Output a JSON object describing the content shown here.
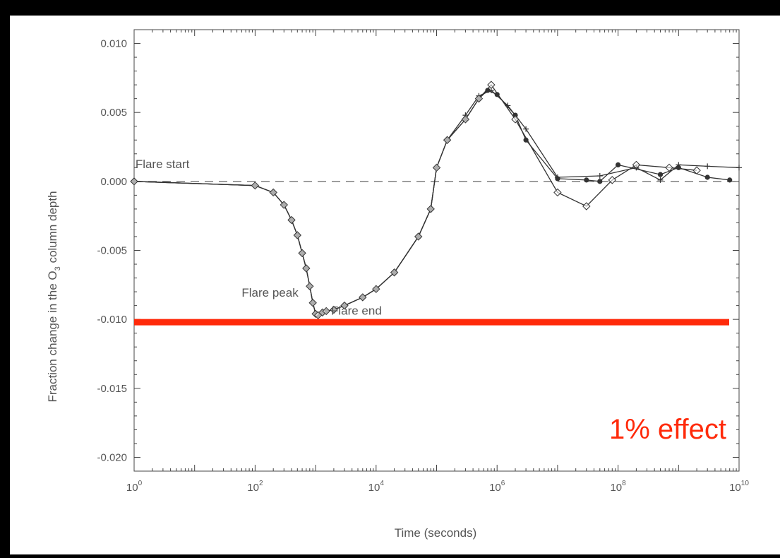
{
  "colors": {
    "background": "#000000",
    "panel": "#ffffff",
    "axes": "#444444",
    "series": "#333333",
    "threshold": "#ff2a0a"
  },
  "chart_data": {
    "type": "line",
    "xlabel": "Time (seconds)",
    "ylabel_parts": {
      "pre": "Fraction change in the O",
      "sub": "3",
      "post": " column depth"
    },
    "xscale": "log",
    "xlim": [
      1,
      10000000000
    ],
    "ylim": [
      -0.021,
      0.011
    ],
    "x_ticks": [
      {
        "value": 1,
        "base": "10",
        "exp": "0"
      },
      {
        "value": 100,
        "base": "10",
        "exp": "2"
      },
      {
        "value": 10000,
        "base": "10",
        "exp": "4"
      },
      {
        "value": 1000000,
        "base": "10",
        "exp": "6"
      },
      {
        "value": 100000000,
        "base": "10",
        "exp": "8"
      },
      {
        "value": 10000000000,
        "base": "10",
        "exp": "10"
      }
    ],
    "y_ticks": [
      {
        "value": 0.01,
        "label": "0.010"
      },
      {
        "value": 0.005,
        "label": "0.005"
      },
      {
        "value": 0.0,
        "label": "0.000"
      },
      {
        "value": -0.005,
        "label": "-0.005"
      },
      {
        "value": -0.01,
        "label": "-0.010"
      },
      {
        "value": -0.015,
        "label": "-0.015"
      },
      {
        "value": -0.02,
        "label": "-0.020"
      }
    ],
    "reference_line": {
      "y": 0.0,
      "style": "dashed"
    },
    "threshold_line": {
      "y": -0.0102,
      "label": "1% effect"
    },
    "annotations": [
      {
        "text": "Flare start",
        "x": 1.05,
        "y": 0.0008
      },
      {
        "text": "Flare peak",
        "x": 60,
        "y": -0.0085
      },
      {
        "text": "Flare end",
        "x": 1800,
        "y": -0.0098
      }
    ],
    "series": [
      {
        "marker": "asterisk",
        "points": [
          [
            1,
            0.0
          ],
          [
            100,
            -0.0003
          ],
          [
            200,
            -0.0008
          ],
          [
            300,
            -0.0017
          ],
          [
            400,
            -0.0028
          ],
          [
            500,
            -0.0039
          ],
          [
            600,
            -0.0052
          ],
          [
            700,
            -0.0063
          ],
          [
            800,
            -0.0076
          ],
          [
            900,
            -0.0088
          ],
          [
            1000,
            -0.0096
          ],
          [
            1100,
            -0.0097
          ],
          [
            1300,
            -0.0095
          ],
          [
            1500,
            -0.0094
          ],
          [
            2000,
            -0.0093
          ],
          [
            3000,
            -0.009
          ],
          [
            6000,
            -0.0084
          ],
          [
            10000,
            -0.0078
          ],
          [
            20000,
            -0.0066
          ],
          [
            50000,
            -0.004
          ],
          [
            80000,
            -0.002
          ],
          [
            100000,
            0.001
          ],
          [
            150000,
            0.003
          ],
          [
            300000,
            0.0045
          ],
          [
            500000,
            0.006
          ],
          [
            700000,
            0.0066
          ],
          [
            1000000,
            0.0063
          ],
          [
            2000000,
            0.0048
          ],
          [
            3000000,
            0.003
          ],
          [
            10000000,
            0.0002
          ],
          [
            30000000,
            0.0001
          ],
          [
            50000000,
            0.0
          ],
          [
            100000000,
            0.0012
          ],
          [
            500000000,
            0.0005
          ],
          [
            1000000000,
            0.001
          ],
          [
            3000000000,
            0.0003
          ],
          [
            7000000000,
            0.0001
          ]
        ]
      },
      {
        "marker": "plus",
        "points": [
          [
            1,
            0.0
          ],
          [
            100,
            -0.0003
          ],
          [
            200,
            -0.0008
          ],
          [
            300,
            -0.0017
          ],
          [
            400,
            -0.0028
          ],
          [
            500,
            -0.0039
          ],
          [
            600,
            -0.0052
          ],
          [
            700,
            -0.0063
          ],
          [
            800,
            -0.0076
          ],
          [
            900,
            -0.0088
          ],
          [
            1000,
            -0.0096
          ],
          [
            1100,
            -0.0097
          ],
          [
            1300,
            -0.0095
          ],
          [
            1500,
            -0.0094
          ],
          [
            2000,
            -0.0093
          ],
          [
            3000,
            -0.009
          ],
          [
            6000,
            -0.0084
          ],
          [
            10000,
            -0.0078
          ],
          [
            20000,
            -0.0066
          ],
          [
            50000,
            -0.004
          ],
          [
            80000,
            -0.002
          ],
          [
            100000,
            0.001
          ],
          [
            150000,
            0.003
          ],
          [
            300000,
            0.0048
          ],
          [
            500000,
            0.0062
          ],
          [
            800000,
            0.0066
          ],
          [
            1500000,
            0.0055
          ],
          [
            3000000,
            0.0038
          ],
          [
            10000000,
            0.0003
          ],
          [
            50000000,
            0.0004
          ],
          [
            200000000,
            0.001
          ],
          [
            500000000,
            0.0001
          ],
          [
            1000000000,
            0.0012
          ],
          [
            3000000000,
            0.0011
          ],
          [
            10000000000,
            0.001
          ]
        ]
      },
      {
        "marker": "diamond",
        "points": [
          [
            1,
            0.0
          ],
          [
            100,
            -0.0003
          ],
          [
            200,
            -0.0008
          ],
          [
            300,
            -0.0017
          ],
          [
            400,
            -0.0028
          ],
          [
            500,
            -0.0039
          ],
          [
            600,
            -0.0052
          ],
          [
            700,
            -0.0063
          ],
          [
            800,
            -0.0076
          ],
          [
            900,
            -0.0088
          ],
          [
            1000,
            -0.0096
          ],
          [
            1100,
            -0.0097
          ],
          [
            1300,
            -0.0095
          ],
          [
            1500,
            -0.0094
          ],
          [
            2000,
            -0.0093
          ],
          [
            3000,
            -0.009
          ],
          [
            6000,
            -0.0084
          ],
          [
            10000,
            -0.0078
          ],
          [
            20000,
            -0.0066
          ],
          [
            50000,
            -0.004
          ],
          [
            80000,
            -0.002
          ],
          [
            100000,
            0.001
          ],
          [
            150000,
            0.003
          ],
          [
            300000,
            0.0045
          ],
          [
            500000,
            0.006
          ],
          [
            800000,
            0.007
          ],
          [
            2000000,
            0.0045
          ],
          [
            10000000,
            -0.0008
          ],
          [
            30000000,
            -0.0018
          ],
          [
            80000000,
            0.0001
          ],
          [
            200000000,
            0.0012
          ],
          [
            700000000,
            0.001
          ],
          [
            2000000000,
            0.0008
          ]
        ]
      }
    ]
  }
}
